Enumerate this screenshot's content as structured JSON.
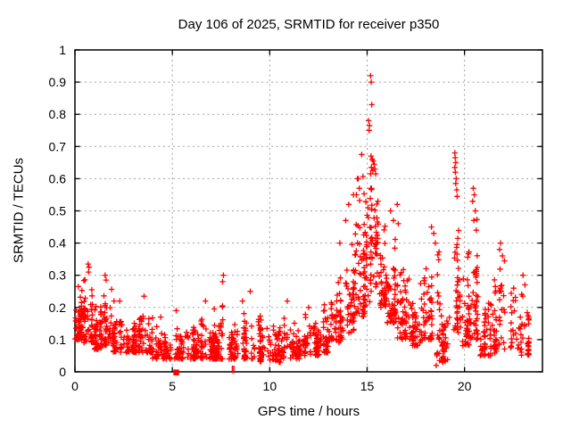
{
  "window": {
    "title": "Day 106 of 2025, SRMTID for receiver p350"
  },
  "chart_data": {
    "type": "scatter",
    "title": "Day 106 of 2025, SRMTID for receiver p350",
    "xlabel": "GPS time / hours",
    "ylabel": "SRMTID / TECUs",
    "xlim": [
      0,
      24
    ],
    "ylim": [
      0,
      1
    ],
    "xticks": [
      0,
      5,
      10,
      15,
      20
    ],
    "xtick_labels": [
      "0",
      "5",
      "10",
      "15",
      "20"
    ],
    "yticks": [
      0,
      0.1,
      0.2,
      0.3,
      0.4,
      0.5,
      0.6,
      0.7,
      0.8,
      0.9,
      1
    ],
    "ytick_labels": [
      "0",
      "0.1",
      "0.2",
      "0.3",
      "0.4",
      "0.5",
      "0.6",
      "0.7",
      "0.8",
      "0.9",
      "1"
    ],
    "grid": true,
    "legend": null,
    "marker": {
      "symbol": "+",
      "color": "#ff0000",
      "size": 7
    },
    "colors": {
      "grid": "#a0a0a0",
      "axis": "#000000",
      "background": "#ffffff",
      "text": "#000000"
    },
    "data_x_range": [
      0,
      23.3
    ],
    "render_seed": 2025106,
    "envelope_bins": {
      "columns": [
        "x_start",
        "x_end",
        "count",
        "y_low",
        "y_high",
        "skew"
      ],
      "rows": [
        [
          0.0,
          0.35,
          45,
          0.1,
          0.28,
          1.3
        ],
        [
          0.35,
          0.95,
          60,
          0.09,
          0.33,
          1.5
        ],
        [
          0.95,
          1.35,
          40,
          0.07,
          0.22,
          1.5
        ],
        [
          1.35,
          1.95,
          55,
          0.08,
          0.3,
          1.6
        ],
        [
          1.95,
          2.45,
          40,
          0.06,
          0.2,
          1.5
        ],
        [
          2.45,
          3.25,
          55,
          0.06,
          0.17,
          1.4
        ],
        [
          3.25,
          3.95,
          50,
          0.06,
          0.23,
          1.6
        ],
        [
          3.95,
          5.0,
          65,
          0.04,
          0.15,
          1.4
        ],
        [
          5.0,
          5.55,
          40,
          0.04,
          0.19,
          1.6
        ],
        [
          5.55,
          6.3,
          50,
          0.04,
          0.15,
          1.4
        ],
        [
          6.3,
          7.05,
          50,
          0.04,
          0.2,
          1.7
        ],
        [
          7.05,
          7.85,
          55,
          0.04,
          0.24,
          1.8
        ],
        [
          7.85,
          8.55,
          45,
          0.04,
          0.16,
          1.5
        ],
        [
          8.55,
          9.55,
          60,
          0.04,
          0.2,
          1.7
        ],
        [
          9.55,
          10.55,
          65,
          0.03,
          0.16,
          1.4
        ],
        [
          10.55,
          11.55,
          65,
          0.04,
          0.18,
          1.5
        ],
        [
          11.55,
          12.55,
          65,
          0.05,
          0.18,
          1.4
        ],
        [
          12.55,
          13.25,
          50,
          0.06,
          0.22,
          1.4
        ],
        [
          13.25,
          13.85,
          45,
          0.09,
          0.32,
          1.4
        ],
        [
          13.85,
          14.35,
          45,
          0.12,
          0.5,
          1.5
        ],
        [
          14.35,
          14.85,
          45,
          0.17,
          0.62,
          1.5
        ],
        [
          14.85,
          15.15,
          35,
          0.2,
          0.66,
          1.2
        ],
        [
          15.15,
          15.55,
          45,
          0.25,
          0.67,
          1.1
        ],
        [
          15.55,
          16.05,
          45,
          0.2,
          0.55,
          1.3
        ],
        [
          16.05,
          16.55,
          45,
          0.15,
          0.47,
          1.3
        ],
        [
          16.55,
          17.25,
          50,
          0.1,
          0.38,
          1.4
        ],
        [
          17.25,
          17.85,
          45,
          0.08,
          0.3,
          1.4
        ],
        [
          17.85,
          18.65,
          55,
          0.1,
          0.43,
          1.5
        ],
        [
          18.65,
          19.35,
          50,
          0.03,
          0.28,
          1.4
        ],
        [
          19.35,
          19.8,
          40,
          0.12,
          0.55,
          1.3
        ],
        [
          19.8,
          20.35,
          45,
          0.08,
          0.45,
          1.6
        ],
        [
          20.35,
          20.75,
          35,
          0.1,
          0.5,
          1.5
        ],
        [
          20.75,
          21.55,
          50,
          0.05,
          0.3,
          1.4
        ],
        [
          21.55,
          22.45,
          55,
          0.07,
          0.38,
          1.4
        ],
        [
          22.45,
          23.3,
          50,
          0.05,
          0.3,
          1.4
        ]
      ]
    },
    "peak_points": [
      [
        15.18,
        0.92
      ],
      [
        15.21,
        0.9
      ],
      [
        15.24,
        0.83
      ],
      [
        15.08,
        0.78
      ],
      [
        15.12,
        0.765
      ],
      [
        15.1,
        0.75
      ],
      [
        14.72,
        0.675
      ],
      [
        15.2,
        0.67
      ],
      [
        15.26,
        0.66
      ],
      [
        15.31,
        0.655
      ],
      [
        15.36,
        0.645
      ],
      [
        15.22,
        0.635
      ],
      [
        15.29,
        0.625
      ],
      [
        15.18,
        0.615
      ],
      [
        15.4,
        0.63
      ],
      [
        15.44,
        0.615
      ],
      [
        14.5,
        0.6
      ],
      [
        14.6,
        0.57
      ],
      [
        14.45,
        0.55
      ],
      [
        14.3,
        0.55
      ],
      [
        14.05,
        0.52
      ],
      [
        13.9,
        0.47
      ],
      [
        13.6,
        0.4
      ],
      [
        16.2,
        0.5
      ],
      [
        16.35,
        0.47
      ],
      [
        16.55,
        0.52
      ],
      [
        16.6,
        0.46
      ],
      [
        18.3,
        0.45
      ],
      [
        18.42,
        0.43
      ],
      [
        18.5,
        0.4
      ],
      [
        19.5,
        0.68
      ],
      [
        19.52,
        0.665
      ],
      [
        19.55,
        0.65
      ],
      [
        19.5,
        0.635
      ],
      [
        19.53,
        0.62
      ],
      [
        19.57,
        0.6
      ],
      [
        19.55,
        0.585
      ],
      [
        19.6,
        0.565
      ],
      [
        19.62,
        0.545
      ],
      [
        20.45,
        0.57
      ],
      [
        20.5,
        0.55
      ],
      [
        20.42,
        0.53
      ],
      [
        20.55,
        0.5
      ],
      [
        20.48,
        0.47
      ],
      [
        20.6,
        0.44
      ],
      [
        21.85,
        0.4
      ],
      [
        21.8,
        0.38
      ],
      [
        21.95,
        0.36
      ],
      [
        22.05,
        0.345
      ],
      [
        23.0,
        0.3
      ],
      [
        23.1,
        0.27
      ],
      [
        0.68,
        0.335
      ],
      [
        0.72,
        0.325
      ],
      [
        0.7,
        0.31
      ],
      [
        1.55,
        0.3
      ],
      [
        1.6,
        0.285
      ],
      [
        7.62,
        0.3
      ],
      [
        7.58,
        0.28
      ],
      [
        9.0,
        0.25
      ],
      [
        3.55,
        0.235
      ],
      [
        2.3,
        0.22
      ],
      [
        6.7,
        0.22
      ],
      [
        8.6,
        0.22
      ],
      [
        10.9,
        0.22
      ],
      [
        12.0,
        0.2
      ],
      [
        5.2,
        0.19
      ],
      [
        4.4,
        0.17
      ],
      [
        18.55,
        0.02
      ],
      [
        18.9,
        0.03
      ]
    ],
    "zero_markers": {
      "square_x": 5.2,
      "tick_x": [
        8.08,
        8.16
      ]
    }
  }
}
